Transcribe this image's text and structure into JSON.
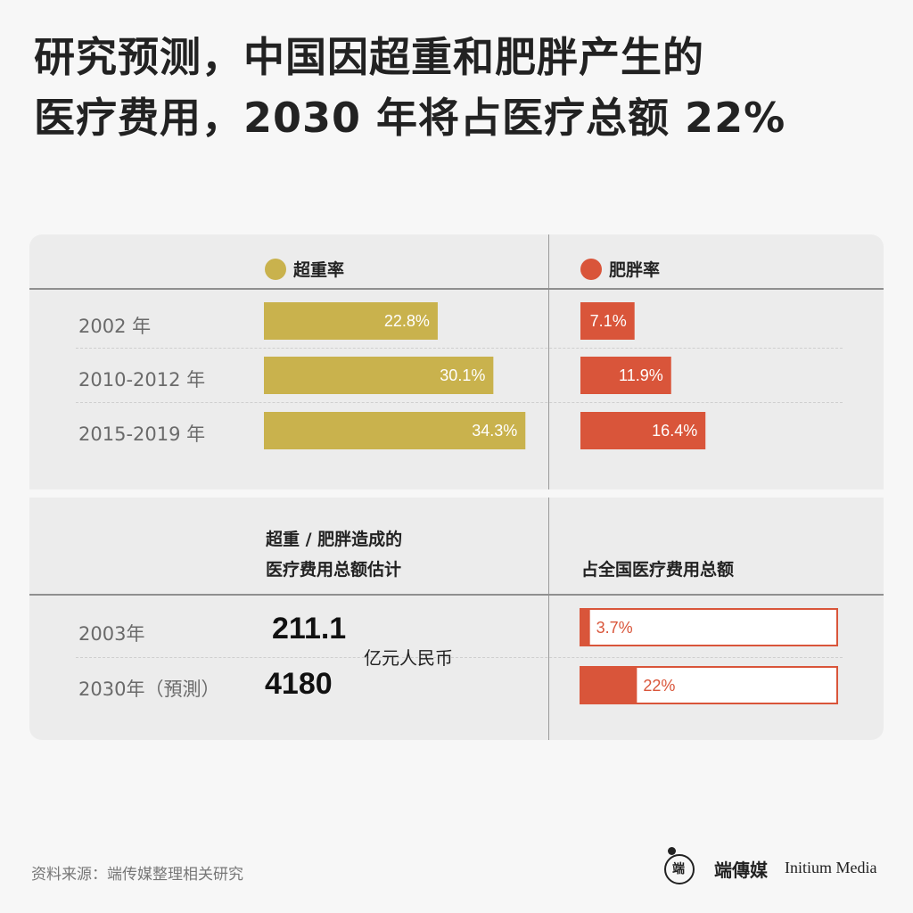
{
  "title": {
    "line1": "研究预测，中国因超重和肥胖产生的",
    "line2": "医疗费用，2030 年将占医疗总额 22%"
  },
  "colors": {
    "overweight": "#c9b24d",
    "obesity": "#d9553a"
  },
  "legend": {
    "overweight": "超重率",
    "obesity": "肥胖率"
  },
  "chart_data": [
    {
      "type": "bar",
      "categories": [
        "2002 年",
        "2010-2012 年",
        "2015-2019 年"
      ],
      "series": [
        {
          "name": "超重率",
          "values": [
            22.8,
            30.1,
            34.3
          ],
          "labels": [
            "22.8%",
            "30.1%",
            "34.3%"
          ]
        },
        {
          "name": "肥胖率",
          "values": [
            7.1,
            11.9,
            16.4
          ],
          "labels": [
            "7.1%",
            "11.9%",
            "16.4%"
          ]
        }
      ],
      "unit": "%"
    },
    {
      "type": "table",
      "columns": [
        "超重 / 肥胖造成的医疗费用总额估计",
        "占全国医疗费用总额"
      ],
      "rows": [
        {
          "label": "2003年",
          "cost": "211.1",
          "share": 3.7,
          "share_label": "3.7%"
        },
        {
          "label": "2030年（預測）",
          "cost": "4180",
          "share": 22,
          "share_label": "22%"
        }
      ],
      "cost_unit": "亿元人民币",
      "share_max": 100
    }
  ],
  "bottom": {
    "cost_header_line1": "超重 / 肥胖造成的",
    "cost_header_line2": "医疗费用总额估计",
    "share_header": "占全国医疗费用总额"
  },
  "source": "资料来源：端传媒整理相关研究",
  "brand": {
    "logo_glyph": "端",
    "name_cn": "端傳媒",
    "name_en": "Initium Media"
  }
}
